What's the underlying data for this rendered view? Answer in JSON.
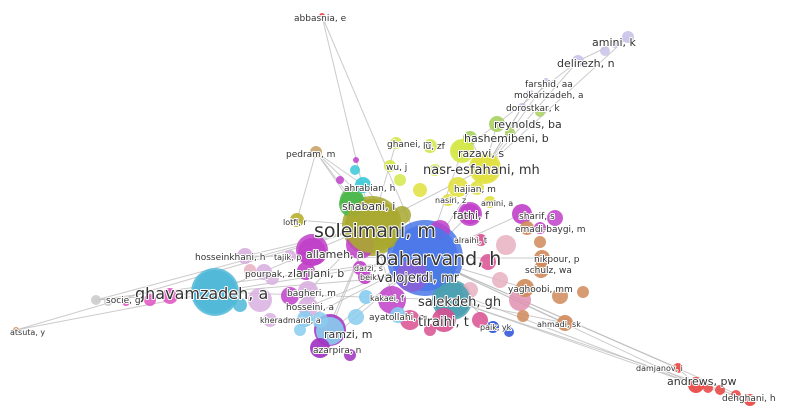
{
  "network": {
    "nodes": [
      {
        "id": "abbasnia",
        "label": "abbasnia, e",
        "color": "#e8423f"
      },
      {
        "id": "amini_k",
        "label": "amini, k",
        "color": "#c9c2e8"
      },
      {
        "id": "delirezh",
        "label": "delirezh, n",
        "color": "#c9c2e8"
      },
      {
        "id": "farshid",
        "label": "farshid, aa",
        "color": "#c9c2e8"
      },
      {
        "id": "mokarizadeh",
        "label": "mokarizadeh, a",
        "color": "#c9c2e8"
      },
      {
        "id": "dorostkar",
        "label": "dorostkar, k",
        "color": "#c9c2e8"
      },
      {
        "id": "reynolds",
        "label": "reynolds, ba",
        "color": "#a8d060"
      },
      {
        "id": "hashemibeni",
        "label": "hashemibeni, b",
        "color": "#a8d060"
      },
      {
        "id": "ghanei",
        "label": "ghanei, m",
        "color": "#d4e84a"
      },
      {
        "id": "lu_zf",
        "label": "lu, zf",
        "color": "#d4e84a"
      },
      {
        "id": "razavi",
        "label": "razavi, s",
        "color": "#d4e84a"
      },
      {
        "id": "pedram",
        "label": "pedram, m",
        "color": "#c8a36a"
      },
      {
        "id": "wu_j",
        "label": "wu, j",
        "color": "#d4e84a"
      },
      {
        "id": "nasr",
        "label": "nasr-esfahani, mh",
        "color": "#e0e040"
      },
      {
        "id": "ahrabian",
        "label": "ahrabian, h",
        "color": "#38c8d8"
      },
      {
        "id": "hajian",
        "label": "hajian, m",
        "color": "#e0e040"
      },
      {
        "id": "shabani",
        "label": "shabani, i",
        "color": "#4cb84c"
      },
      {
        "id": "nasiri",
        "label": "nasiri, z",
        "color": "#e0e040"
      },
      {
        "id": "amini_a",
        "label": "amini, a",
        "color": "#e0e040"
      },
      {
        "id": "fathi",
        "label": "fathi, f",
        "color": "#c040c8"
      },
      {
        "id": "sharif",
        "label": "sharif, s",
        "color": "#c040c8"
      },
      {
        "id": "lotfi",
        "label": "lotfi, r",
        "color": "#b8b030"
      },
      {
        "id": "soleimani",
        "label": "soleimani, m",
        "color": "#a8a830"
      },
      {
        "id": "emadi",
        "label": "emadi-baygi, m",
        "color": "#d08a5a"
      },
      {
        "id": "alraihi",
        "label": "alraihi, t",
        "color": "#d85090"
      },
      {
        "id": "hosseinkhani",
        "label": "hosseinkhani, h",
        "color": "#d8b0e0"
      },
      {
        "id": "tajik",
        "label": "tajik, p",
        "color": "#d8b0e0"
      },
      {
        "id": "allameh",
        "label": "allameh, a",
        "color": "#c040c8"
      },
      {
        "id": "baharvand",
        "label": "baharvand, h",
        "color": "#4a78e8"
      },
      {
        "id": "nikpour",
        "label": "nikpour, p",
        "color": "#d08a5a"
      },
      {
        "id": "ghavamzadeh",
        "label": "ghavamzadeh, a",
        "color": "#50b8d8"
      },
      {
        "id": "pourpak",
        "label": "pourpak, z",
        "color": "#d8b0e0"
      },
      {
        "id": "larijani",
        "label": "larijani, b",
        "color": "#c040c8"
      },
      {
        "id": "darzi",
        "label": "darzi, s",
        "color": "#c040c8"
      },
      {
        "id": "beiki",
        "label": "beiki, b",
        "color": "#c040c8"
      },
      {
        "id": "valojerdi",
        "label": "valojerdi, mr",
        "color": "#8860d8"
      },
      {
        "id": "schulz",
        "label": "schulz, wa",
        "color": "#d08a5a"
      },
      {
        "id": "socie",
        "label": "socie, g",
        "color": "#cccccc"
      },
      {
        "id": "bagheri",
        "label": "bagheri, m",
        "color": "#d8b0e0"
      },
      {
        "id": "yaghoobi",
        "label": "yaghoobi, mm",
        "color": "#d08a5a"
      },
      {
        "id": "hosseini",
        "label": "hosseini, a",
        "color": "#d8b0e0"
      },
      {
        "id": "kakaei",
        "label": "kakaei, f",
        "color": "#88ccee"
      },
      {
        "id": "salekdeh",
        "label": "salekdeh, gh",
        "color": "#4aa0b0"
      },
      {
        "id": "kheradmand",
        "label": "kheradmand, a",
        "color": "#88ccee"
      },
      {
        "id": "ayatollahi",
        "label": "ayatollahi, m",
        "color": "#88ccee"
      },
      {
        "id": "tiraihi",
        "label": "tiraihi, t",
        "color": "#d85090"
      },
      {
        "id": "paik",
        "label": "paik, yk",
        "color": "#2850d8"
      },
      {
        "id": "ahmadi",
        "label": "ahmadi, sk",
        "color": "#d08a5a"
      },
      {
        "id": "ramzi",
        "label": "ramzi, m",
        "color": "#88ccee"
      },
      {
        "id": "atsuta",
        "label": "atsuta, y",
        "color": "#d08a5a"
      },
      {
        "id": "azarpira",
        "label": "azarpira, n",
        "color": "#a030c0"
      },
      {
        "id": "damjanov",
        "label": "damjanov, i",
        "color": "#e8423f"
      },
      {
        "id": "andrews",
        "label": "andrews, pw",
        "color": "#e8423f"
      },
      {
        "id": "dehghani",
        "label": "dehghani, h",
        "color": "#e8423f"
      }
    ]
  },
  "colors": {
    "edge": "#b5b5b5",
    "background": "#ffffff"
  }
}
